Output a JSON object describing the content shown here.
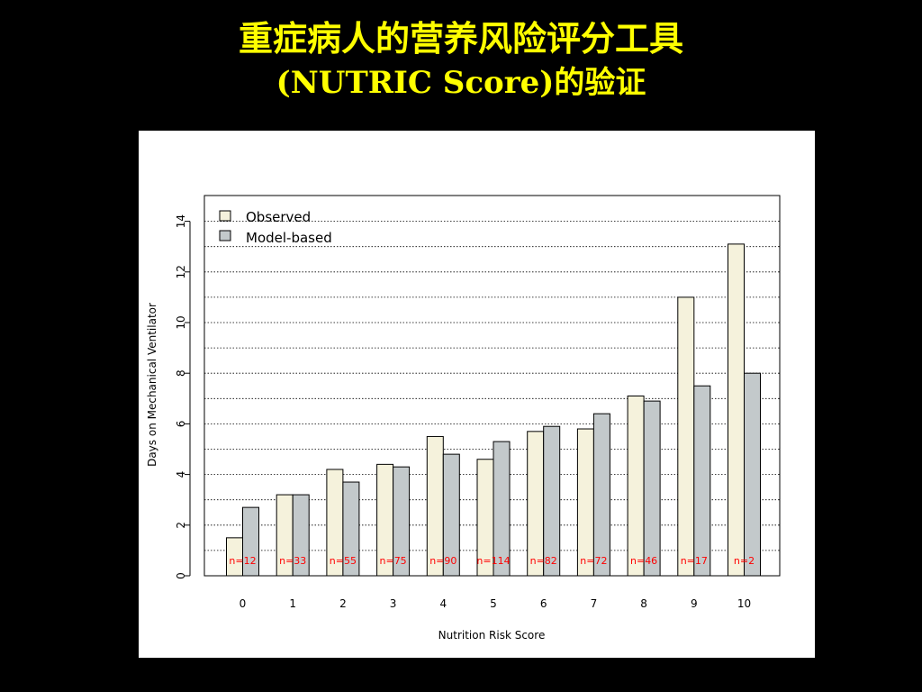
{
  "slide": {
    "title_line1": "重症病人的营养风险评分工具",
    "title_line2": "(NUTRIC Score)的验证"
  },
  "colors": {
    "background": "#000000",
    "title": "#FFFF00",
    "observed_fill": "#F5F2DC",
    "model_fill": "#C3C9CB",
    "n_label": "#FF0000"
  },
  "chart_data": {
    "type": "bar",
    "title": "",
    "xlabel": "Nutrition Risk Score",
    "ylabel": "Days on Mechanical Ventilator",
    "categories": [
      "0",
      "1",
      "2",
      "3",
      "4",
      "5",
      "6",
      "7",
      "8",
      "9",
      "10"
    ],
    "series": [
      {
        "name": "Observed",
        "values": [
          1.5,
          3.2,
          4.2,
          4.4,
          5.5,
          4.6,
          5.7,
          5.8,
          7.1,
          11.0,
          13.1
        ]
      },
      {
        "name": "Model-based",
        "values": [
          2.7,
          3.2,
          3.7,
          4.3,
          4.8,
          5.3,
          5.9,
          6.4,
          6.9,
          7.5,
          8.0
        ]
      }
    ],
    "n_labels": [
      "n=12",
      "n=33",
      "n=55",
      "n=75",
      "n=90",
      "n=114",
      "n=82",
      "n=72",
      "n=46",
      "n=17",
      "n=2"
    ],
    "ylim": [
      0,
      15
    ],
    "yticks": [
      "0",
      "2",
      "4",
      "6",
      "8",
      "10",
      "12",
      "14"
    ],
    "grid": true,
    "legend": "top-left"
  }
}
